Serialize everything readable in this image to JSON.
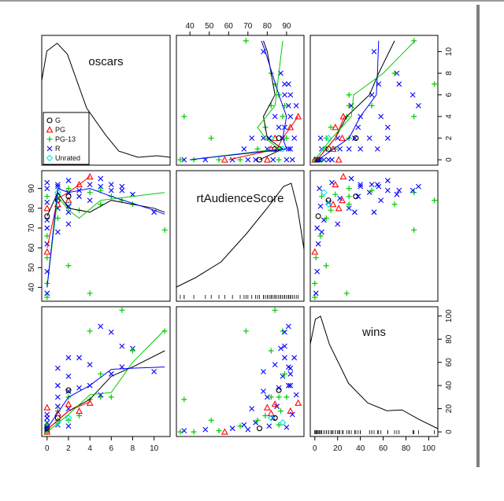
{
  "chart_data": {
    "type": "scatter",
    "variables": [
      "oscars",
      "rtAudienceScore",
      "wins"
    ],
    "diagonal_labels": [
      "oscars",
      "rtAudienceScore",
      "wins"
    ],
    "legend": {
      "placement": "inside oscars panel, lower-left",
      "entries": [
        {
          "label": "G",
          "symbol": "circle",
          "color": "#000000"
        },
        {
          "label": "PG",
          "symbol": "triangle",
          "color": "#ff0000"
        },
        {
          "label": "PG-13",
          "symbol": "plus",
          "color": "#00cc00"
        },
        {
          "label": "R",
          "symbol": "cross",
          "color": "#0000ff"
        },
        {
          "label": "Unrated",
          "symbol": "diamond",
          "color": "#00e5e5"
        }
      ]
    },
    "axes": {
      "oscars": {
        "range": [
          -0.5,
          11.5
        ],
        "ticks": [
          0,
          2,
          4,
          6,
          8,
          10
        ]
      },
      "rtAudienceScore": {
        "range": [
          33,
          99
        ],
        "ticks": [
          40,
          50,
          60,
          70,
          80,
          90
        ]
      },
      "wins": {
        "range": [
          -4,
          108
        ],
        "ticks": [
          0,
          20,
          40,
          60,
          80,
          100
        ]
      }
    },
    "tick_labels": {
      "top": [
        "40",
        "50",
        "60",
        "70",
        "80",
        "90"
      ],
      "bottom": [
        "0",
        "2",
        "4",
        "6",
        "8",
        "10",
        "0",
        "20",
        "40",
        "60",
        "80",
        "100"
      ],
      "left": [
        "40",
        "50",
        "60",
        "70",
        "80",
        "90"
      ],
      "right": [
        "0",
        "2",
        "4",
        "6",
        "8",
        "10",
        "0",
        "20",
        "40",
        "60",
        "80",
        "100"
      ]
    },
    "points": [
      {
        "g": "PG-13",
        "oscars": 0,
        "rt": 35,
        "wins": 0
      },
      {
        "g": "R",
        "oscars": 0,
        "rt": 37,
        "wins": 1
      },
      {
        "g": "PG-13",
        "oscars": 0,
        "rt": 42,
        "wins": 0
      },
      {
        "g": "R",
        "oscars": 0,
        "rt": 48,
        "wins": 2
      },
      {
        "g": "PG-13",
        "oscars": 0,
        "rt": 55,
        "wins": 1
      },
      {
        "g": "PG",
        "oscars": 0,
        "rt": 58,
        "wins": 0
      },
      {
        "g": "R",
        "oscars": 0,
        "rt": 62,
        "wins": 3
      },
      {
        "g": "PG-13",
        "oscars": 0,
        "rt": 66,
        "wins": 5
      },
      {
        "g": "R",
        "oscars": 0,
        "rt": 70,
        "wins": 2
      },
      {
        "g": "R",
        "oscars": 0,
        "rt": 74,
        "wins": 8
      },
      {
        "g": "G",
        "oscars": 0,
        "rt": 76,
        "wins": 3
      },
      {
        "g": "PG",
        "oscars": 0,
        "rt": 80,
        "wins": 21
      },
      {
        "g": "R",
        "oscars": 0,
        "rt": 83,
        "wins": 12
      },
      {
        "g": "PG-13",
        "oscars": 0,
        "rt": 86,
        "wins": 6
      },
      {
        "g": "R",
        "oscars": 0,
        "rt": 90,
        "wins": 4
      },
      {
        "g": "R",
        "oscars": 0,
        "rt": 93,
        "wins": 15
      },
      {
        "g": "R",
        "oscars": 1,
        "rt": 68,
        "wins": 6
      },
      {
        "g": "PG-13",
        "oscars": 1,
        "rt": 75,
        "wins": 10
      },
      {
        "g": "R",
        "oscars": 1,
        "rt": 80,
        "wins": 30
      },
      {
        "g": "R",
        "oscars": 1,
        "rt": 85,
        "wins": 22
      },
      {
        "g": "PG-13",
        "oscars": 1,
        "rt": 87,
        "wins": 18
      },
      {
        "g": "R",
        "oscars": 1,
        "rt": 91,
        "wins": 40
      },
      {
        "g": "Unrated",
        "oscars": 1,
        "rt": 88,
        "wins": 8
      },
      {
        "g": "G",
        "oscars": 1,
        "rt": 84,
        "wins": 12
      },
      {
        "g": "R",
        "oscars": 1,
        "rt": 92,
        "wins": 55
      },
      {
        "g": "PG",
        "oscars": 1,
        "rt": 82,
        "wins": 16
      },
      {
        "g": "R",
        "oscars": 2,
        "rt": 72,
        "wins": 20
      },
      {
        "g": "PG-13",
        "oscars": 2,
        "rt": 51,
        "wins": 10
      },
      {
        "g": "R",
        "oscars": 2,
        "rt": 78,
        "wins": 35
      },
      {
        "g": "PG",
        "oscars": 2,
        "rt": 84,
        "wins": 24
      },
      {
        "g": "R",
        "oscars": 2,
        "rt": 88,
        "wins": 48
      },
      {
        "g": "PG-13",
        "oscars": 2,
        "rt": 90,
        "wins": 30
      },
      {
        "g": "R",
        "oscars": 2,
        "rt": 94,
        "wins": 64
      },
      {
        "g": "G",
        "oscars": 2,
        "rt": 86,
        "wins": 36
      },
      {
        "g": "Unrated",
        "oscars": 2,
        "rt": 82,
        "wins": 12
      },
      {
        "g": "R",
        "oscars": 2,
        "rt": 81,
        "wins": 5
      },
      {
        "g": "PG-13",
        "oscars": 3,
        "rt": 79,
        "wins": 14
      },
      {
        "g": "R",
        "oscars": 3,
        "rt": 86,
        "wins": 38
      },
      {
        "g": "PG",
        "oscars": 3,
        "rt": 92,
        "wins": 18
      },
      {
        "g": "R",
        "oscars": 3,
        "rt": 89,
        "wins": 64
      },
      {
        "g": "PG-13",
        "oscars": 4,
        "rt": 37,
        "wins": 28
      },
      {
        "g": "R",
        "oscars": 4,
        "rt": 92,
        "wins": 40
      },
      {
        "g": "PG",
        "oscars": 4,
        "rt": 96,
        "wins": 25
      },
      {
        "g": "PG-13",
        "oscars": 4,
        "rt": 88,
        "wins": 87
      },
      {
        "g": "R",
        "oscars": 4,
        "rt": 84,
        "wins": 58
      },
      {
        "g": "R",
        "oscars": 5,
        "rt": 91,
        "wins": 91
      },
      {
        "g": "PG-13",
        "oscars": 5,
        "rt": 82,
        "wins": 30
      },
      {
        "g": "R",
        "oscars": 5,
        "rt": 95,
        "wins": 32
      },
      {
        "g": "PG-13",
        "oscars": 5,
        "rt": 89,
        "wins": 50
      },
      {
        "g": "R",
        "oscars": 6,
        "rt": 89,
        "wins": 86
      },
      {
        "g": "PG-13",
        "oscars": 6,
        "rt": 86,
        "wins": 30
      },
      {
        "g": "R",
        "oscars": 6,
        "rt": 92,
        "wins": 50
      },
      {
        "g": "PG-13",
        "oscars": 7,
        "rt": 84,
        "wins": 105
      },
      {
        "g": "R",
        "oscars": 7,
        "rt": 91,
        "wins": 56
      },
      {
        "g": "R",
        "oscars": 7,
        "rt": 89,
        "wins": 74
      },
      {
        "g": "R",
        "oscars": 8,
        "rt": 87,
        "wins": 72
      },
      {
        "g": "PG-13",
        "oscars": 8,
        "rt": 82,
        "wins": 70
      },
      {
        "g": "R",
        "oscars": 10,
        "rt": 78,
        "wins": 52
      },
      {
        "g": "PG-13",
        "oscars": 11,
        "rt": 69,
        "wins": 87
      }
    ],
    "fit_lines": [
      {
        "name": "overall",
        "color": "#000000",
        "oscars_rt": [
          [
            0,
            76
          ],
          [
            1,
            88
          ],
          [
            2,
            80
          ],
          [
            4,
            78
          ],
          [
            6,
            84
          ],
          [
            8,
            82
          ],
          [
            10,
            80
          ],
          [
            11,
            78
          ]
        ],
        "oscars_wins": [
          [
            0,
            2
          ],
          [
            2,
            18
          ],
          [
            4,
            28
          ],
          [
            6,
            48
          ],
          [
            8,
            56
          ],
          [
            11,
            70
          ]
        ]
      },
      {
        "name": "PG",
        "color": "#ff0000",
        "oscars_rt": [
          [
            0,
            60
          ],
          [
            1,
            85
          ],
          [
            2,
            88
          ],
          [
            4,
            96
          ]
        ],
        "oscars_wins": [
          [
            0,
            2
          ],
          [
            2,
            18
          ],
          [
            4,
            26
          ]
        ]
      },
      {
        "name": "PG-13",
        "color": "#00cc00",
        "oscars_rt": [
          [
            0,
            40
          ],
          [
            1,
            86
          ],
          [
            2,
            79
          ],
          [
            3,
            75
          ],
          [
            5,
            84
          ],
          [
            11,
            88
          ]
        ],
        "oscars_wins": [
          [
            0,
            0
          ],
          [
            2,
            15
          ],
          [
            4,
            32
          ],
          [
            6,
            34
          ],
          [
            8,
            60
          ],
          [
            11,
            88
          ]
        ]
      },
      {
        "name": "R",
        "color": "#0000ff",
        "oscars_rt": [
          [
            0,
            40
          ],
          [
            1,
            90
          ],
          [
            2,
            88
          ],
          [
            4,
            90
          ],
          [
            6,
            86
          ],
          [
            10,
            79
          ],
          [
            11,
            77
          ]
        ],
        "oscars_wins": [
          [
            0,
            3
          ],
          [
            2,
            30
          ],
          [
            4,
            40
          ],
          [
            6,
            54
          ],
          [
            8,
            55
          ],
          [
            11,
            56
          ]
        ]
      }
    ],
    "grid": false
  }
}
